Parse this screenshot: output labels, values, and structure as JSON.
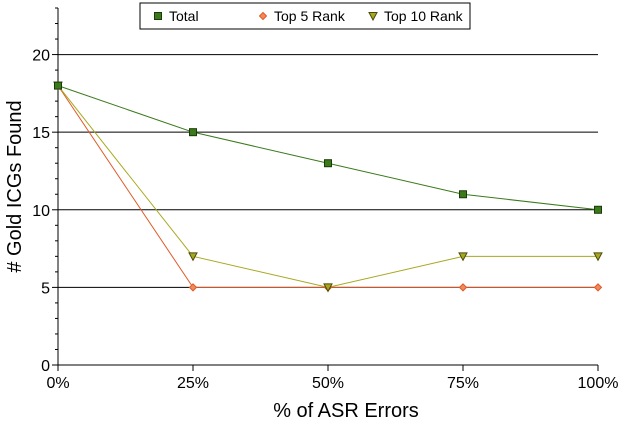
{
  "chart_data": {
    "type": "line",
    "x": [
      "0%",
      "25%",
      "50%",
      "75%",
      "100%"
    ],
    "xlabel": "% of ASR Errors",
    "ylabel": "# Gold ICGs Found",
    "ylim": [
      0,
      23
    ],
    "yticks": [
      0,
      5,
      10,
      15,
      20
    ],
    "grid": "horizontal",
    "legend_position": "top",
    "series": [
      {
        "name": "Total",
        "values": [
          18,
          15,
          13,
          11,
          10
        ],
        "color": "#3a7a1a",
        "marker": "square"
      },
      {
        "name": "Top 5 Rank",
        "values": [
          18,
          5,
          5,
          5,
          5
        ],
        "color": "#e05a28",
        "marker": "diamond"
      },
      {
        "name": "Top 10 Rank",
        "values": [
          18,
          7,
          5,
          7,
          7
        ],
        "color": "#a8a820",
        "marker": "triangle-down"
      }
    ]
  }
}
